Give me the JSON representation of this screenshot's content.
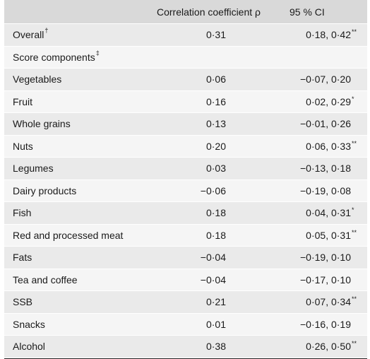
{
  "header": {
    "label": "",
    "coef": "Correlation coefficient ρ",
    "ci": "95 % CI"
  },
  "rows": [
    {
      "label": "Overall",
      "label_sup": "†",
      "coef": "0·31",
      "ci": "0·18, 0·42",
      "ci_sup": "**"
    },
    {
      "label": "Score components",
      "label_sup": "‡",
      "coef": "",
      "ci": "",
      "ci_sup": ""
    },
    {
      "label": "Vegetables",
      "label_sup": "",
      "coef": "0·06",
      "ci": "−0·07, 0·20",
      "ci_sup": ""
    },
    {
      "label": "Fruit",
      "label_sup": "",
      "coef": "0·16",
      "ci": "0·02, 0·29",
      "ci_sup": "*"
    },
    {
      "label": "Whole grains",
      "label_sup": "",
      "coef": "0·13",
      "ci": "−0·01, 0·26",
      "ci_sup": ""
    },
    {
      "label": "Nuts",
      "label_sup": "",
      "coef": "0·20",
      "ci": "0·06, 0·33",
      "ci_sup": "**"
    },
    {
      "label": "Legumes",
      "label_sup": "",
      "coef": "0·03",
      "ci": "−0·13, 0·18",
      "ci_sup": ""
    },
    {
      "label": "Dairy products",
      "label_sup": "",
      "coef": "−0·06",
      "ci": "−0·19, 0·08",
      "ci_sup": ""
    },
    {
      "label": "Fish",
      "label_sup": "",
      "coef": "0·18",
      "ci": "0·04, 0·31",
      "ci_sup": "*"
    },
    {
      "label": "Red and processed meat",
      "label_sup": "",
      "coef": "0·18",
      "ci": "0·05, 0·31",
      "ci_sup": "**"
    },
    {
      "label": "Fats",
      "label_sup": "",
      "coef": "−0·04",
      "ci": "−0·19, 0·10",
      "ci_sup": ""
    },
    {
      "label": "Tea and coffee",
      "label_sup": "",
      "coef": "−0·04",
      "ci": "−0·17, 0·10",
      "ci_sup": ""
    },
    {
      "label": "SSB",
      "label_sup": "",
      "coef": "0·21",
      "ci": "0·07, 0·34",
      "ci_sup": "**"
    },
    {
      "label": "Snacks",
      "label_sup": "",
      "coef": "0·01",
      "ci": "−0·16, 0·19",
      "ci_sup": ""
    },
    {
      "label": "Alcohol",
      "label_sup": "",
      "coef": "0·38",
      "ci": "0·26, 0·50",
      "ci_sup": "**"
    }
  ]
}
